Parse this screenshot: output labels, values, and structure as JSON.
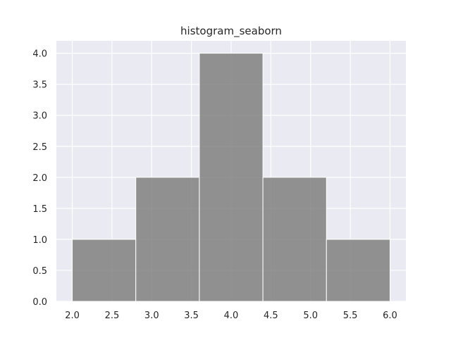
{
  "chart_data": {
    "type": "bar",
    "title": "histogram_seaborn",
    "xlabel": "",
    "ylabel": "",
    "bins": [
      {
        "x0": 2.0,
        "x1": 2.8,
        "count": 1
      },
      {
        "x0": 2.8,
        "x1": 3.6,
        "count": 2
      },
      {
        "x0": 3.6,
        "x1": 4.4,
        "count": 4
      },
      {
        "x0": 4.4,
        "x1": 5.2,
        "count": 2
      },
      {
        "x0": 5.2,
        "x1": 6.0,
        "count": 1
      }
    ],
    "xlim": [
      1.8,
      6.2
    ],
    "ylim": [
      0,
      4.2
    ],
    "x_ticks": [
      "2.0",
      "2.5",
      "3.0",
      "3.5",
      "4.0",
      "4.5",
      "5.0",
      "5.5",
      "6.0"
    ],
    "y_ticks": [
      "0.0",
      "0.5",
      "1.0",
      "1.5",
      "2.0",
      "2.5",
      "3.0",
      "3.5",
      "4.0"
    ],
    "grid": true,
    "legend": "none",
    "colors": {
      "plot_background": "#eaeaf2",
      "grid": "#ffffff",
      "bar_fill": "#808080",
      "bar_edge": "#ffffff",
      "text": "#262626"
    }
  }
}
